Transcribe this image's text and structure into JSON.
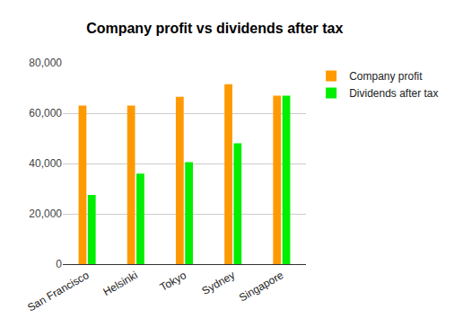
{
  "chart_data": {
    "type": "bar",
    "title": "Company profit vs dividends after tax",
    "categories": [
      "San Francisco",
      "Helsinki",
      "Tokyo",
      "Sydney",
      "Singapore"
    ],
    "series": [
      {
        "name": "Company profit",
        "color": "#ff9900",
        "values": [
          63000,
          63000,
          66500,
          71500,
          67000
        ]
      },
      {
        "name": "Dividends after tax",
        "color": "#00ee00",
        "values": [
          27500,
          36000,
          40500,
          48000,
          67000
        ]
      }
    ],
    "ylim": [
      0,
      80000
    ],
    "yticks": [
      0,
      {
        "value": 20000,
        "label": "20,000"
      },
      {
        "value": 40000,
        "label": "40,000"
      },
      {
        "value": 60000,
        "label": "60,000"
      },
      {
        "value": 80000,
        "label": "80,000"
      }
    ],
    "grid": true,
    "legend": "right"
  }
}
